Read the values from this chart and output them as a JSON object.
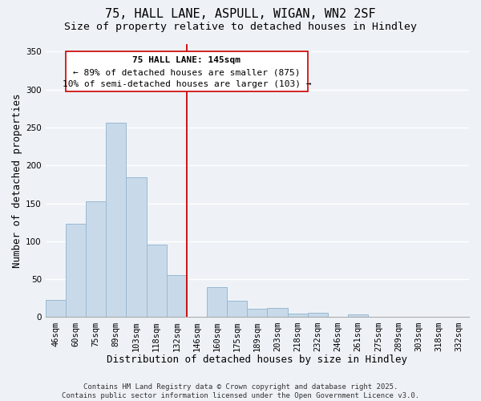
{
  "title_line1": "75, HALL LANE, ASPULL, WIGAN, WN2 2SF",
  "title_line2": "Size of property relative to detached houses in Hindley",
  "xlabel": "Distribution of detached houses by size in Hindley",
  "ylabel": "Number of detached properties",
  "bar_color": "#c8daea",
  "bar_edgecolor": "#9ab8d0",
  "bin_labels": [
    "46sqm",
    "60sqm",
    "75sqm",
    "89sqm",
    "103sqm",
    "118sqm",
    "132sqm",
    "146sqm",
    "160sqm",
    "175sqm",
    "189sqm",
    "203sqm",
    "218sqm",
    "232sqm",
    "246sqm",
    "261sqm",
    "275sqm",
    "289sqm",
    "303sqm",
    "318sqm",
    "332sqm"
  ],
  "bar_heights": [
    23,
    123,
    153,
    256,
    184,
    96,
    55,
    0,
    40,
    22,
    11,
    12,
    5,
    6,
    0,
    4,
    0,
    0,
    0,
    0,
    0
  ],
  "vline_x_index": 7,
  "vline_color": "#cc0000",
  "ylim": [
    0,
    360
  ],
  "yticks": [
    0,
    50,
    100,
    150,
    200,
    250,
    300,
    350
  ],
  "annotation_title": "75 HALL LANE: 145sqm",
  "annotation_line2": "← 89% of detached houses are smaller (875)",
  "annotation_line3": "10% of semi-detached houses are larger (103) →",
  "footer_line1": "Contains HM Land Registry data © Crown copyright and database right 2025.",
  "footer_line2": "Contains public sector information licensed under the Open Government Licence v3.0.",
  "background_color": "#eef2f7",
  "grid_color": "#ffffff",
  "title_fontsize": 11,
  "subtitle_fontsize": 9.5,
  "axis_label_fontsize": 9,
  "tick_fontsize": 7.5,
  "annotation_fontsize": 8,
  "footer_fontsize": 6.5
}
